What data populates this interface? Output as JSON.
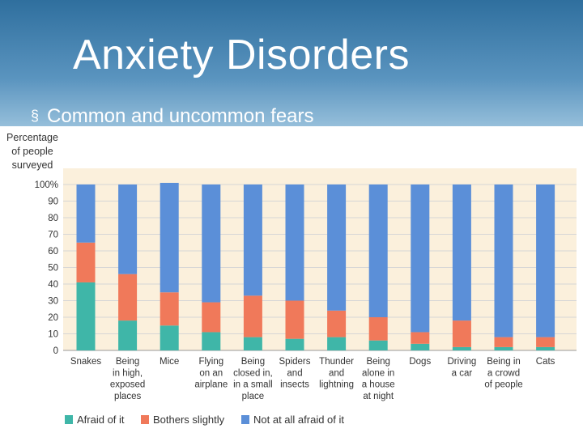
{
  "slide": {
    "title": "Anxiety Disorders",
    "bullet_icon": "square-bullet-icon",
    "bullet_text": "Common and uncommon fears"
  },
  "colors": {
    "afraid": "#3fb6a8",
    "bothers": "#f0795a",
    "not_afraid": "#5b8fd8",
    "plot_bg": "#fbf0dc",
    "gridline": "#d6d6d6"
  },
  "chart_data": {
    "type": "bar",
    "stacked": true,
    "title": "",
    "ylabel": [
      "Percentage",
      "of people",
      "surveyed"
    ],
    "ylim": [
      0,
      100
    ],
    "yticks": [
      "0",
      "10",
      "20",
      "30",
      "40",
      "50",
      "60",
      "70",
      "80",
      "90",
      "100%"
    ],
    "categories": [
      [
        "Snakes"
      ],
      [
        "Being",
        "in high,",
        "exposed",
        "places"
      ],
      [
        "Mice"
      ],
      [
        "Flying",
        "on an",
        "airplane"
      ],
      [
        "Being",
        "closed in,",
        "in a small",
        "place"
      ],
      [
        "Spiders",
        "and",
        "insects"
      ],
      [
        "Thunder",
        "and",
        "lightning"
      ],
      [
        "Being",
        "alone in",
        "a house",
        "at night"
      ],
      [
        "Dogs"
      ],
      [
        "Driving",
        "a car"
      ],
      [
        "Being in",
        "a crowd",
        "of people"
      ],
      [
        "Cats"
      ]
    ],
    "series": [
      {
        "name": "Afraid of it",
        "values": [
          41,
          18,
          15,
          11,
          8,
          7,
          8,
          6,
          4,
          2,
          2,
          2
        ]
      },
      {
        "name": "Bothers slightly",
        "values": [
          24,
          28,
          20,
          18,
          25,
          23,
          16,
          14,
          7,
          16,
          6,
          6
        ]
      },
      {
        "name": "Not at all afraid of it",
        "values": [
          35,
          54,
          66,
          71,
          67,
          70,
          76,
          80,
          89,
          82,
          92,
          92
        ]
      }
    ],
    "legend_position": "bottom"
  }
}
